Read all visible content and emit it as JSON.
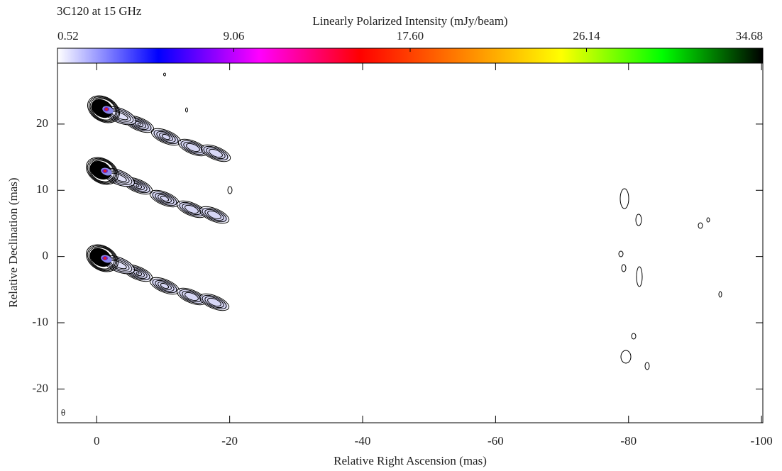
{
  "chart_data": {
    "type": "image",
    "title": "3C120 at 15 GHz",
    "colorbar_label": "Linearly Polarized Intensity (mJy/beam)",
    "colorbar_lim": [
      0.52,
      34.68
    ],
    "colorbar_ticks": [
      0.52,
      9.06,
      {
        "value": 17.6,
        "label": "17.60"
      },
      26.14,
      34.68
    ],
    "colormap": [
      "#ffffff",
      "#0000ff",
      "#ff00ff",
      "#ff0000",
      "#ff8000",
      "#ffff00",
      "#00ff00",
      "#000000"
    ],
    "xlabel": "Relative Right Ascension (mas)",
    "ylabel": "Relative Declination (mas)",
    "beam_label": "θ",
    "xlim": [
      5.9,
      -100.2
    ],
    "ylim": [
      -25.1,
      29.2
    ],
    "xticks": [
      0,
      -20,
      -40,
      -60,
      -80,
      -100
    ],
    "yticks": [
      -20,
      -10,
      0,
      10,
      20
    ]
  }
}
